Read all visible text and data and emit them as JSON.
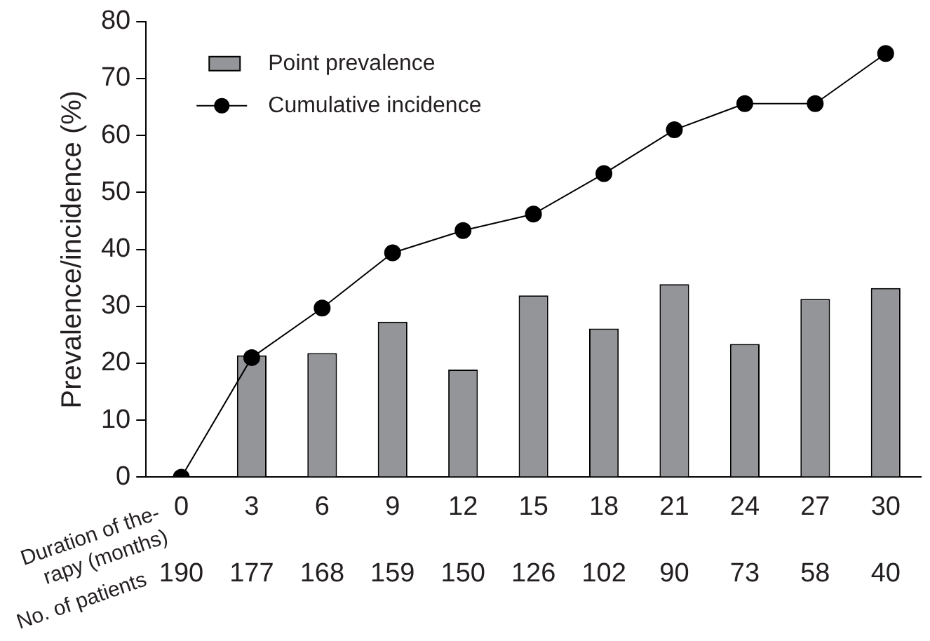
{
  "chart_data": {
    "type": "bar",
    "ylabel": "Prevalence/incidence (%)",
    "xlabel": "Duration of the-\nrapy (months)",
    "categories": [
      "0",
      "3",
      "6",
      "9",
      "12",
      "15",
      "18",
      "21",
      "24",
      "27",
      "30"
    ],
    "series": [
      {
        "name": "Point prevalence",
        "color": "#939598",
        "values": [
          0,
          21.4,
          21.8,
          27.3,
          18.9,
          31.9,
          26.1,
          33.9,
          23.4,
          31.3,
          33.2
        ]
      },
      {
        "name": "Cumulative incidence",
        "type": "line",
        "color": "#000000",
        "values": [
          0,
          21.0,
          29.7,
          39.4,
          43.3,
          46.2,
          53.3,
          61.0,
          65.6,
          65.6,
          74.4
        ]
      }
    ],
    "ylim": [
      0,
      80
    ],
    "yticks": [
      0,
      10,
      20,
      30,
      40,
      50,
      60,
      70,
      80
    ],
    "grid": false,
    "legend": "top left",
    "marker": "circle",
    "line_style": "solid",
    "annotations": [
      "No. of patients",
      "190",
      "177",
      "168",
      "159",
      "150",
      "126",
      "102",
      "90",
      "73",
      "58",
      "40"
    ]
  }
}
